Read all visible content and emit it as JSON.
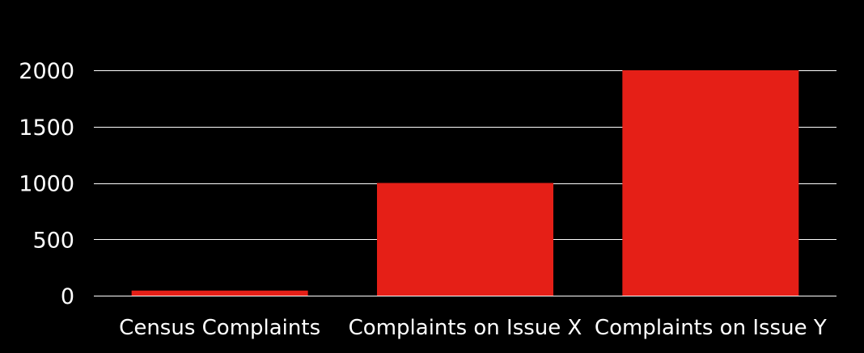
{
  "chart_data": {
    "type": "bar",
    "categories": [
      "Census Complaints",
      "Complaints on Issue X",
      "Complaints on Issue Y"
    ],
    "values": [
      45,
      1000,
      2000
    ],
    "title": "",
    "xlabel": "",
    "ylabel": "",
    "ylim": [
      0,
      2000
    ],
    "yticks": [
      0,
      500,
      1000,
      1500,
      2000
    ],
    "grid": true,
    "legend": "none",
    "colors": {
      "background": "#000000",
      "bar": "#E51F17",
      "gridline": "#ffffff",
      "text": "#ffffff"
    }
  }
}
